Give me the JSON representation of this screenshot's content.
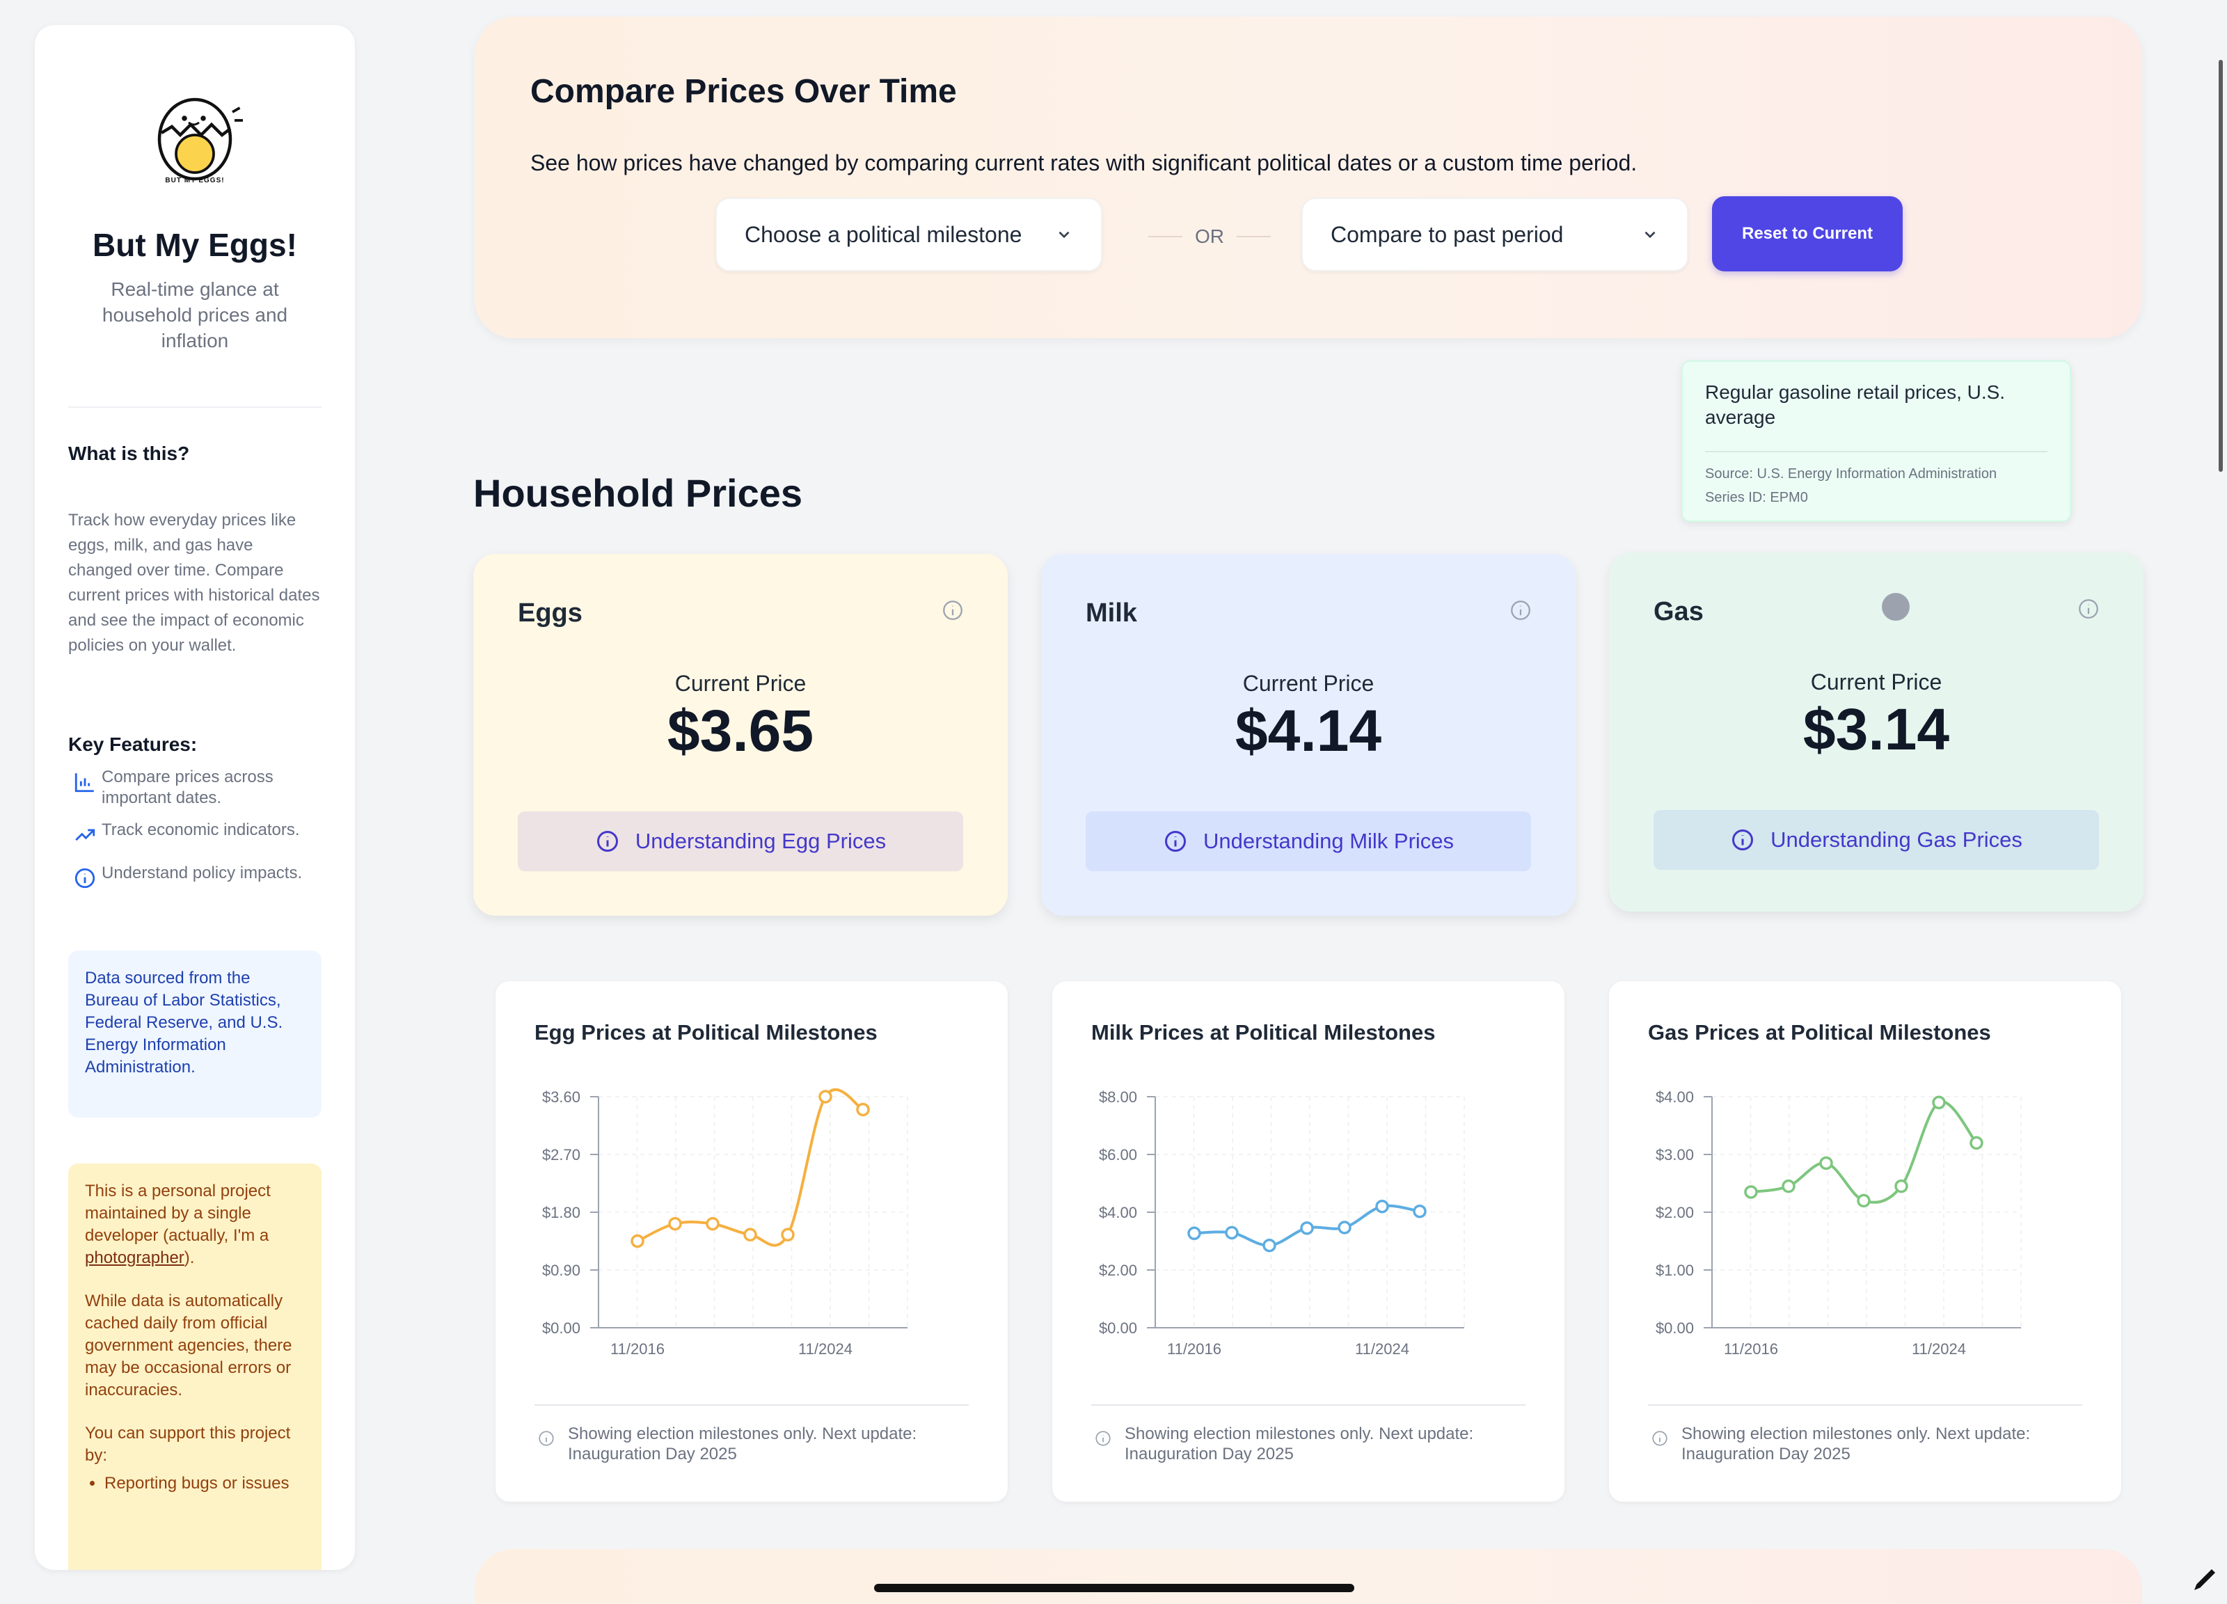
{
  "sidebar": {
    "logo_caption": "BUT MY EGGS!",
    "title": "But My Eggs!",
    "subtitle": "Real-time glance at household prices and inflation",
    "what_heading": "What is this?",
    "what_text": "Track how everyday prices like eggs, milk, and gas have changed over time. Compare current prices with historical dates and see the impact of economic policies on your wallet.",
    "features_heading": "Key Features:",
    "features": [
      {
        "icon": "bar-chart-icon",
        "label": "Compare prices across important dates."
      },
      {
        "icon": "trending-up-icon",
        "label": "Track economic indicators."
      },
      {
        "icon": "info-icon",
        "label": "Understand policy impacts."
      }
    ],
    "data_source": "Data sourced from the Bureau of Labor Statistics, Federal Reserve, and U.S. Energy Information Administration.",
    "disclaimer_p1_before": "This is a personal project maintained by a single developer (actually, I'm a ",
    "disclaimer_link": "photographer",
    "disclaimer_p1_after": ").",
    "disclaimer_p2": "While data is automatically cached daily from official government agencies, there may be occasional errors or inaccuracies.",
    "disclaimer_p3": "You can support this project by:",
    "support_items": [
      "Reporting bugs or issues"
    ]
  },
  "compare": {
    "title": "Compare Prices Over Time",
    "description": "See how prices have changed by comparing current rates with significant political dates or a custom time period.",
    "milestone_select": "Choose a political milestone",
    "or_label": "OR",
    "period_select": "Compare to past period",
    "reset_label": "Reset to Current"
  },
  "tooltip": {
    "title": "Regular gasoline retail prices, U.S. average",
    "source": "Source: U.S. Energy Information Administration",
    "series": "Series ID: EPM0"
  },
  "household": {
    "title": "Household Prices",
    "cards": [
      {
        "name": "Eggs",
        "label": "Current Price",
        "price": "$3.65",
        "button": "Understanding Egg Prices"
      },
      {
        "name": "Milk",
        "label": "Current Price",
        "price": "$4.14",
        "button": "Understanding Milk Prices"
      },
      {
        "name": "Gas",
        "label": "Current Price",
        "price": "$3.14",
        "button": "Understanding Gas Prices"
      }
    ]
  },
  "chart_note": "Showing election milestones only. Next update: Inauguration Day 2025",
  "chart_data": [
    {
      "type": "line",
      "title": "Egg Prices at Political Milestones",
      "color": "#f5b041",
      "yticks": [
        "$0.00",
        "$0.90",
        "$1.80",
        "$2.70",
        "$3.60"
      ],
      "ylim": [
        0,
        3.6
      ],
      "xticks": [
        "11/2016",
        "11/2024"
      ],
      "values": [
        1.35,
        1.62,
        1.62,
        1.45,
        1.45,
        3.6,
        3.4
      ]
    },
    {
      "type": "line",
      "title": "Milk Prices at Political Milestones",
      "color": "#5dade2",
      "yticks": [
        "$0.00",
        "$2.00",
        "$4.00",
        "$6.00",
        "$8.00"
      ],
      "ylim": [
        0,
        8
      ],
      "xticks": [
        "11/2016",
        "11/2024"
      ],
      "values": [
        3.27,
        3.29,
        2.85,
        3.45,
        3.47,
        4.2,
        4.03
      ]
    },
    {
      "type": "line",
      "title": "Gas Prices at Political Milestones",
      "color": "#7dc67e",
      "yticks": [
        "$0.00",
        "$1.00",
        "$2.00",
        "$3.00",
        "$4.00"
      ],
      "ylim": [
        0,
        4
      ],
      "xticks": [
        "11/2016",
        "11/2024"
      ],
      "values": [
        2.35,
        2.45,
        2.85,
        2.2,
        2.45,
        3.9,
        3.2
      ]
    }
  ]
}
